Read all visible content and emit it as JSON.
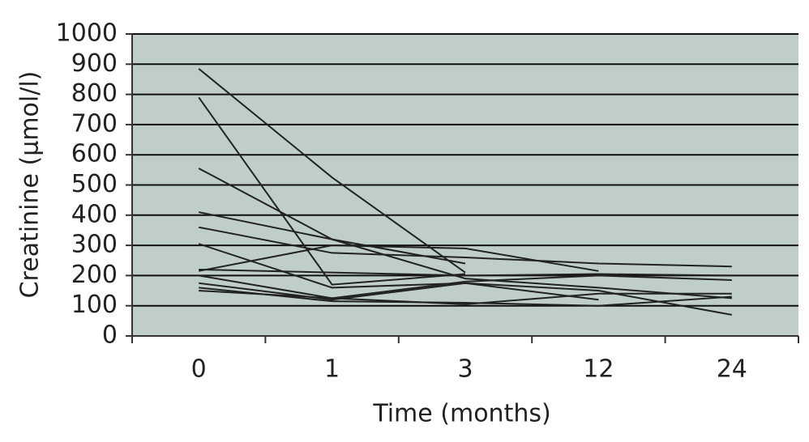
{
  "chart_data": {
    "type": "line",
    "xlabel": "Time (months)",
    "ylabel": "Creatinine (µmol/l)",
    "categories": [
      "0",
      "1",
      "3",
      "12",
      "24"
    ],
    "series": [
      {
        "color": "#222222",
        "values": [
          885,
          525,
          210,
          null,
          null
        ]
      },
      {
        "color": "#222222",
        "values": [
          790,
          170,
          205,
          null,
          null
        ]
      },
      {
        "color": "#222222",
        "values": [
          555,
          320,
          190,
          160,
          125
        ]
      },
      {
        "color": "#222222",
        "values": [
          410,
          320,
          240,
          null,
          null
        ]
      },
      {
        "color": "#222222",
        "values": [
          360,
          275,
          260,
          240,
          230
        ]
      },
      {
        "color": "#222222",
        "values": [
          305,
          160,
          175,
          120,
          null
        ]
      },
      {
        "color": "#222222",
        "values": [
          220,
          210,
          200,
          205,
          200
        ]
      },
      {
        "color": "#222222",
        "values": [
          215,
          300,
          290,
          215,
          null
        ]
      },
      {
        "color": "#222222",
        "values": [
          200,
          125,
          180,
          200,
          185
        ]
      },
      {
        "color": "#222222",
        "values": [
          175,
          120,
          175,
          150,
          70
        ]
      },
      {
        "color": "#222222",
        "values": [
          160,
          115,
          110,
          100,
          130
        ]
      },
      {
        "color": "#222222",
        "values": [
          150,
          125,
          105,
          140,
          140
        ]
      }
    ],
    "ylim": [
      0,
      1000
    ],
    "yticks": [
      0,
      100,
      200,
      300,
      400,
      500,
      600,
      700,
      800,
      900,
      1000
    ],
    "grid": true,
    "plot_background": "#bfcecb"
  }
}
